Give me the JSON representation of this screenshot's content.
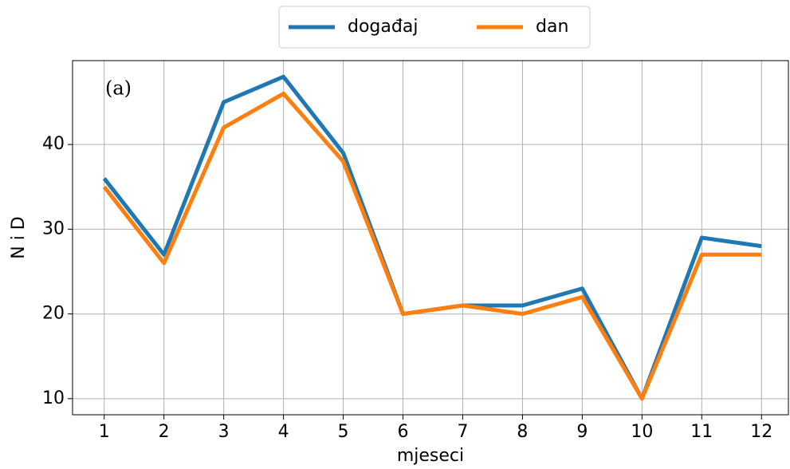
{
  "chart_data": {
    "type": "line",
    "annotation": "(a)",
    "xlabel": "mjeseci",
    "ylabel": "N i D",
    "x": [
      1,
      2,
      3,
      4,
      5,
      6,
      7,
      8,
      9,
      10,
      11,
      12
    ],
    "series": [
      {
        "name": "događaj",
        "color": "#1f77b4",
        "values": [
          36,
          27,
          45,
          48,
          39,
          20,
          21,
          21,
          23,
          10,
          29,
          28
        ]
      },
      {
        "name": "dan",
        "color": "#ff7f0e",
        "values": [
          35,
          26,
          42,
          46,
          38,
          20,
          21,
          20,
          22,
          10,
          27,
          27
        ]
      }
    ],
    "xlim": [
      0.47,
      12.45
    ],
    "ylim": [
      8.1,
      49.9
    ],
    "xticks": [
      1,
      2,
      3,
      4,
      5,
      6,
      7,
      8,
      9,
      10,
      11,
      12
    ],
    "yticks": [
      10,
      20,
      30,
      40
    ],
    "grid": true,
    "legend": "top"
  }
}
